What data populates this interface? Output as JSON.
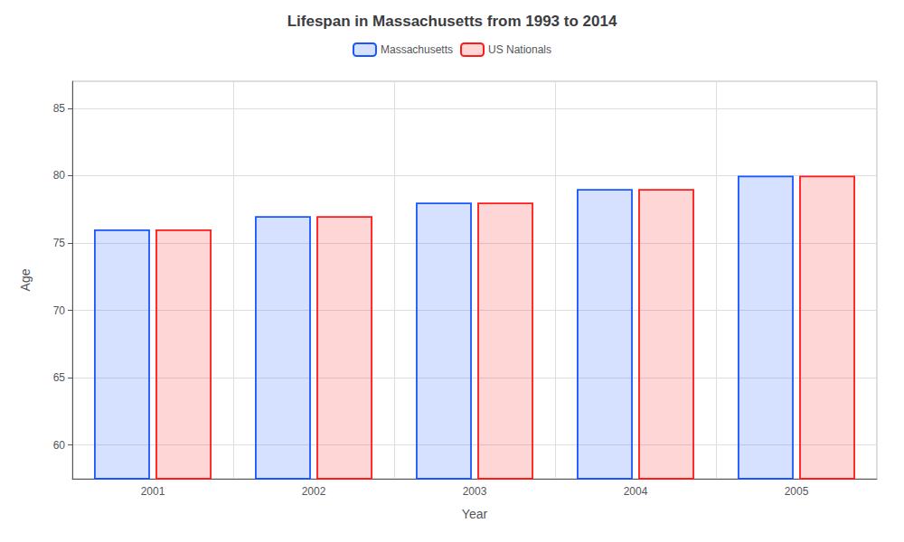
{
  "chart_data": {
    "type": "bar",
    "title": "Lifespan in Massachusetts from 1993 to 2014",
    "xlabel": "Year",
    "ylabel": "Age",
    "categories": [
      "2001",
      "2002",
      "2003",
      "2004",
      "2005"
    ],
    "series": [
      {
        "name": "Massachusetts",
        "color": "#1a56ff",
        "values": [
          76,
          77,
          78,
          79,
          80
        ]
      },
      {
        "name": "US Nationals",
        "color": "#ff1a1a",
        "values": [
          76,
          77,
          78,
          79,
          80
        ]
      }
    ],
    "ylim": [
      57.5,
      87
    ],
    "yticks": [
      60,
      65,
      70,
      75,
      80,
      85
    ],
    "grid": true,
    "legend": "top"
  }
}
